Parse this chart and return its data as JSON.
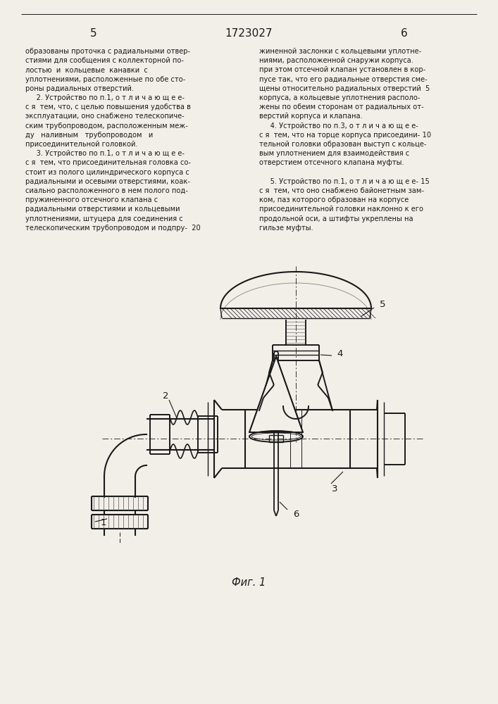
{
  "page_left_num": "5",
  "page_center_num": "1723027",
  "page_right_num": "6",
  "col_left_text": [
    "образованы проточка с радиальными отвер-",
    "стиями для сообщения с коллекторной по-",
    "лостью  и  кольцевые  канавки  с",
    "уплотнениями, расположенные по обе сто-",
    "роны радиальных отверстий.",
    "     2. Устройство по п.1, о т л и ч а ю щ е е-",
    "с я  тем, что, с целью повышения удобства в",
    "эксплуатации, оно снабжено телескопиче-",
    "ским трубопроводом, расположенным меж-",
    "ду   наливным   трубопроводом   и",
    "присоединительной головкой.",
    "     3. Устройство по п.1, о т л и ч а ю щ е е-",
    "с я  тем, что присоединительная головка со-",
    "стоит из полого цилиндрического корпуса с",
    "радиальными и осевыми отверстиями, коак-",
    "сиально расположенного в нем полого под-",
    "пружиненного отсечного клапана с",
    "радиальными отверстиями и кольцевыми",
    "уплотнениями, штуцера для соединения с",
    "телескопическим трубопроводом и подпру-  20"
  ],
  "col_right_text": [
    "жиненной заслонки с кольцевыми уплотне-",
    "ниями, расположенной снаружи корпуса.",
    "при этом отсечной клапан установлен в кор-",
    "пусе так, что его радиальные отверстия сме-",
    "щены относительно радиальных отверстий  5",
    "корпуса, а кольцевые уплотнения располо-",
    "жены по обеим сторонам от радиальных от-",
    "верстий корпуса и клапана.",
    "     4. Устройство по п.3, о т л и ч а ю щ е е-",
    "с я  тем, что на торце корпуса присоедини- 10",
    "тельной головки образован выступ с кольце-",
    "вым уплотнением для взаимодействия с",
    "отверстием отсечного клапана муфты.",
    "",
    "     5. Устройство по п.1, о т л и ч а ю щ е е- 15",
    "с я  тем, что оно снабжено байонетным зам-",
    "ком, паз которого образован на корпусе",
    "присоединительной головки наклонно к его",
    "продольной оси, а штифты укреплены на",
    "гильзе муфты."
  ],
  "fig_label": "Фиг. 1",
  "bg_color": "#f2efe9",
  "text_color": "#1a1a1a"
}
